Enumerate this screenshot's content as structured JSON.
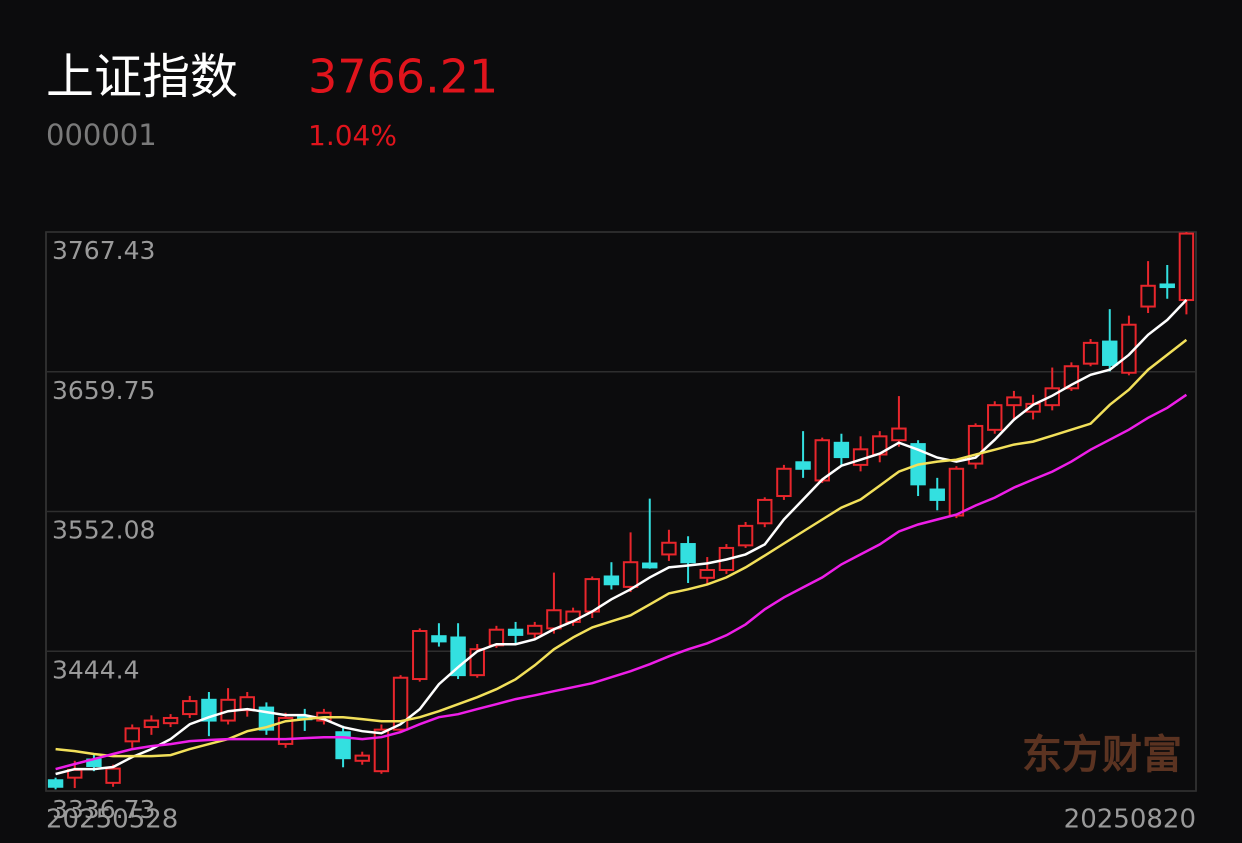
{
  "header": {
    "name": "上证指数",
    "code": "000001",
    "price": "3766.21",
    "change": "1.04%"
  },
  "chart_data": {
    "type": "candlestick",
    "watermark": "东方财富",
    "x": [
      "20250528",
      null,
      null,
      null,
      null,
      null,
      null,
      null,
      null,
      null,
      null,
      null,
      null,
      null,
      null,
      null,
      null,
      null,
      null,
      null,
      null,
      null,
      null,
      null,
      null,
      null,
      null,
      null,
      null,
      null,
      null,
      null,
      null,
      null,
      null,
      null,
      null,
      null,
      null,
      null,
      null,
      null,
      null,
      null,
      null,
      null,
      null,
      null,
      null,
      null,
      null,
      null,
      null,
      null,
      null,
      null,
      null,
      null,
      null,
      "20250820"
    ],
    "open": [
      3345,
      3347,
      3361,
      3343,
      3375,
      3386,
      3389,
      3396,
      3407,
      3391,
      3399,
      3401,
      3373,
      3394,
      3391,
      3382,
      3360,
      3352,
      3384,
      3423,
      3456,
      3455,
      3426,
      3449,
      3461,
      3458,
      3462,
      3467,
      3475,
      3502,
      3494,
      3512,
      3519,
      3527,
      3501,
      3507,
      3526,
      3543,
      3564,
      3590,
      3576,
      3605,
      3588,
      3596,
      3607,
      3604,
      3569,
      3549,
      3589,
      3615,
      3634,
      3629,
      3634,
      3647,
      3666,
      3683,
      3659,
      3710,
      3727,
      3715
    ],
    "high": [
      3347,
      3360,
      3365,
      3357,
      3388,
      3395,
      3396,
      3410,
      3413,
      3416,
      3413,
      3405,
      3397,
      3400,
      3400,
      3387,
      3367,
      3388,
      3426,
      3462,
      3466,
      3466,
      3450,
      3464,
      3467,
      3467,
      3505,
      3478,
      3502,
      3513,
      3536,
      3562,
      3538,
      3533,
      3517,
      3527,
      3544,
      3563,
      3588,
      3614,
      3609,
      3612,
      3610,
      3614,
      3641,
      3607,
      3578,
      3587,
      3620,
      3637,
      3645,
      3642,
      3663,
      3667,
      3685,
      3708,
      3703,
      3745,
      3742,
      3767.43
    ],
    "low": [
      3338,
      3339,
      3352,
      3340,
      3370,
      3380,
      3386,
      3393,
      3379,
      3388,
      3394,
      3380,
      3370,
      3383,
      3388,
      3355,
      3357,
      3350,
      3382,
      3421,
      3448,
      3423,
      3424,
      3447,
      3450,
      3454,
      3458,
      3464,
      3470,
      3492,
      3490,
      3508,
      3514,
      3497,
      3496,
      3504,
      3524,
      3540,
      3561,
      3578,
      3574,
      3588,
      3583,
      3590,
      3602,
      3564,
      3553,
      3547,
      3585,
      3612,
      3622,
      3623,
      3630,
      3645,
      3664,
      3660,
      3657,
      3705,
      3716,
      3704
    ],
    "close": [
      3340,
      3353,
      3356,
      3354,
      3385,
      3391,
      3393,
      3406,
      3391,
      3407,
      3409,
      3384,
      3393,
      3392,
      3397,
      3362,
      3364,
      3384,
      3424,
      3460,
      3452,
      3426,
      3446,
      3461,
      3457,
      3464,
      3476,
      3475,
      3500,
      3496,
      3513,
      3509,
      3528,
      3513,
      3507,
      3524,
      3541,
      3561,
      3585,
      3585,
      3607,
      3594,
      3600,
      3610,
      3616,
      3573,
      3561,
      3585,
      3618,
      3634,
      3640,
      3635,
      3647,
      3664,
      3682,
      3665,
      3696,
      3726,
      3725,
      3766.21
    ],
    "up_color": "#e8262c",
    "down_color": "#33e0e0",
    "lines": [
      {
        "color": "#ffffff",
        "values": [
          3349.8,
          3353.6,
          3353.6,
          3355.2,
          3362.9,
          3369.0,
          3376.7,
          3388.2,
          3393.6,
          3398.2,
          3399.8,
          3397.5,
          3395.2,
          3395.2,
          3392.1,
          3385.9,
          3382.8,
          3381.3,
          3388.2,
          3399.8,
          3419.0,
          3432.1,
          3444.4,
          3449.8,
          3449.8,
          3453.6,
          3461.3,
          3467.5,
          3475.1,
          3484.4,
          3492.1,
          3501.3,
          3509.0,
          3510.5,
          3512.1,
          3515.1,
          3519.0,
          3526.7,
          3545.9,
          3561.3,
          3576.7,
          3587.4,
          3592.0,
          3596.7,
          3605.1,
          3599.7,
          3593.6,
          3590.5,
          3593.6,
          3607.4,
          3622.8,
          3634.3,
          3641.3,
          3649.7,
          3657.4,
          3661.3,
          3672.8,
          3688.2,
          3699.7,
          3715.1
        ]
      },
      {
        "color": "#f2e05a",
        "values": [
          3369.0,
          3367.5,
          3365.2,
          3363.6,
          3363.6,
          3363.6,
          3364.4,
          3369.0,
          3372.9,
          3376.7,
          3382.8,
          3385.9,
          3390.5,
          3392.1,
          3393.6,
          3393.6,
          3392.1,
          3390.5,
          3390.5,
          3393.6,
          3398.2,
          3403.6,
          3409.0,
          3415.2,
          3422.8,
          3433.6,
          3445.9,
          3455.1,
          3462.8,
          3467.5,
          3472.1,
          3480.5,
          3489.0,
          3492.1,
          3495.9,
          3501.3,
          3509.0,
          3518.2,
          3527.4,
          3536.7,
          3545.9,
          3555.1,
          3561.3,
          3572.0,
          3582.8,
          3588.2,
          3590.5,
          3592.0,
          3595.9,
          3599.7,
          3603.6,
          3605.9,
          3610.5,
          3615.1,
          3619.7,
          3634.3,
          3645.9,
          3661.3,
          3672.8,
          3684.3
        ]
      },
      {
        "color": "#ee1ee8",
        "values": [
          3353.6,
          3357.5,
          3361.3,
          3365.2,
          3369.0,
          3371.3,
          3372.9,
          3375.2,
          3376.0,
          3376.7,
          3376.7,
          3376.7,
          3376.7,
          3377.5,
          3378.2,
          3378.2,
          3376.7,
          3378.2,
          3382.1,
          3388.2,
          3393.6,
          3395.9,
          3399.8,
          3403.6,
          3407.5,
          3410.5,
          3413.6,
          3416.7,
          3419.8,
          3424.4,
          3429.0,
          3434.4,
          3440.5,
          3445.9,
          3450.5,
          3456.7,
          3465.1,
          3476.7,
          3485.9,
          3493.6,
          3501.3,
          3511.3,
          3519.0,
          3526.7,
          3536.7,
          3542.1,
          3545.9,
          3549.7,
          3556.7,
          3562.8,
          3570.5,
          3576.7,
          3582.8,
          3590.5,
          3599.7,
          3607.4,
          3615.1,
          3624.3,
          3632.0,
          3642.0
        ]
      }
    ],
    "ylim": [
      3336.73,
      3767.43
    ],
    "yticks": [
      3336.73,
      3444.4,
      3552.08,
      3659.75,
      3767.43
    ],
    "grid": true
  }
}
